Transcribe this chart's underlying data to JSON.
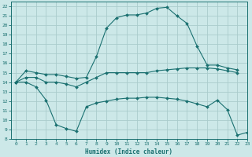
{
  "xlabel": "Humidex (Indice chaleur)",
  "xlim": [
    -0.5,
    23
  ],
  "ylim": [
    8,
    22.5
  ],
  "yticks": [
    8,
    9,
    10,
    11,
    12,
    13,
    14,
    15,
    16,
    17,
    18,
    19,
    20,
    21,
    22
  ],
  "xticks": [
    0,
    1,
    2,
    3,
    4,
    5,
    6,
    7,
    8,
    9,
    10,
    11,
    12,
    13,
    14,
    15,
    16,
    17,
    18,
    19,
    20,
    21,
    22,
    23
  ],
  "bg_color": "#cce8e8",
  "grid_color": "#aacccc",
  "line_color": "#1a7070",
  "curve1_x": [
    0,
    1,
    2,
    3,
    4,
    5,
    6,
    7,
    8,
    9,
    10,
    11,
    12,
    13,
    14,
    15,
    16,
    17,
    18,
    19,
    20,
    21,
    22
  ],
  "curve1_y": [
    14.0,
    15.2,
    15.0,
    14.8,
    14.8,
    14.6,
    14.4,
    14.5,
    16.7,
    19.7,
    20.8,
    21.1,
    21.1,
    21.3,
    21.8,
    21.9,
    21.0,
    20.2,
    17.8,
    15.8,
    15.8,
    15.5,
    15.3
  ],
  "curve2_x": [
    0,
    1,
    2,
    3,
    4,
    5,
    6,
    7,
    8,
    9,
    10,
    11,
    12,
    13,
    14,
    15,
    16,
    17,
    18,
    19,
    20,
    21,
    22
  ],
  "curve2_y": [
    14.0,
    14.5,
    14.5,
    14.0,
    14.0,
    13.8,
    13.5,
    14.0,
    14.5,
    15.0,
    15.0,
    15.0,
    15.0,
    15.0,
    15.2,
    15.3,
    15.4,
    15.5,
    15.5,
    15.5,
    15.4,
    15.2,
    15.0
  ],
  "curve3_x": [
    0,
    1,
    2,
    3,
    4,
    5,
    6,
    7,
    8,
    9,
    10,
    11,
    12,
    13,
    14,
    15,
    16,
    17,
    18,
    19,
    20,
    21,
    22,
    23
  ],
  "curve3_y": [
    14.0,
    14.0,
    13.5,
    12.1,
    9.5,
    9.1,
    8.8,
    11.4,
    11.8,
    12.0,
    12.2,
    12.3,
    12.3,
    12.4,
    12.4,
    12.3,
    12.2,
    12.0,
    11.7,
    11.4,
    12.1,
    11.1,
    8.4,
    8.7
  ]
}
